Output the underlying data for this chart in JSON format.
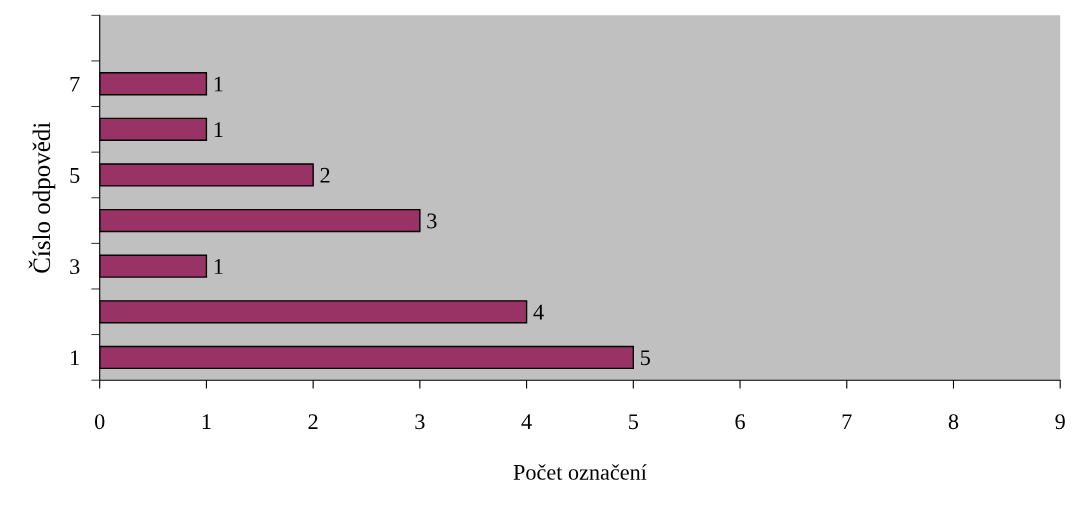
{
  "chart_data": {
    "type": "bar",
    "orientation": "horizontal",
    "xlabel": "Počet označení",
    "ylabel": "Číslo odpovědi",
    "categories": [
      null,
      "7",
      null,
      "5",
      null,
      "3",
      null,
      "1"
    ],
    "values": [
      null,
      1,
      1,
      2,
      3,
      1,
      4,
      5
    ],
    "color": "#993366",
    "xlim": [
      0,
      9
    ],
    "xticks": [
      0,
      1,
      2,
      3,
      4,
      5,
      6,
      7,
      8,
      9
    ],
    "data_labels": true,
    "grid": false
  }
}
